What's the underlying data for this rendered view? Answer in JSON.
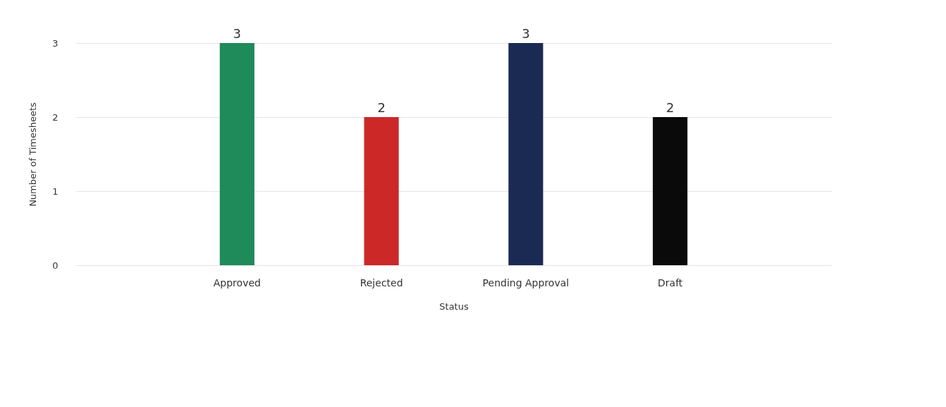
{
  "chart_data": {
    "type": "bar",
    "xlabel": "Status",
    "ylabel": "Number of Timesheets",
    "categories": [
      "Approved",
      "Rejected",
      "Pending Approval",
      "Draft"
    ],
    "values": [
      3,
      2,
      3,
      2
    ],
    "colors": [
      "#1f8a5a",
      "#cc2828",
      "#1b2a52",
      "#0a0a0a"
    ],
    "ylim": [
      0,
      3
    ],
    "yticks": [
      0,
      1,
      2,
      3
    ],
    "grid": "y",
    "data_labels": true
  }
}
